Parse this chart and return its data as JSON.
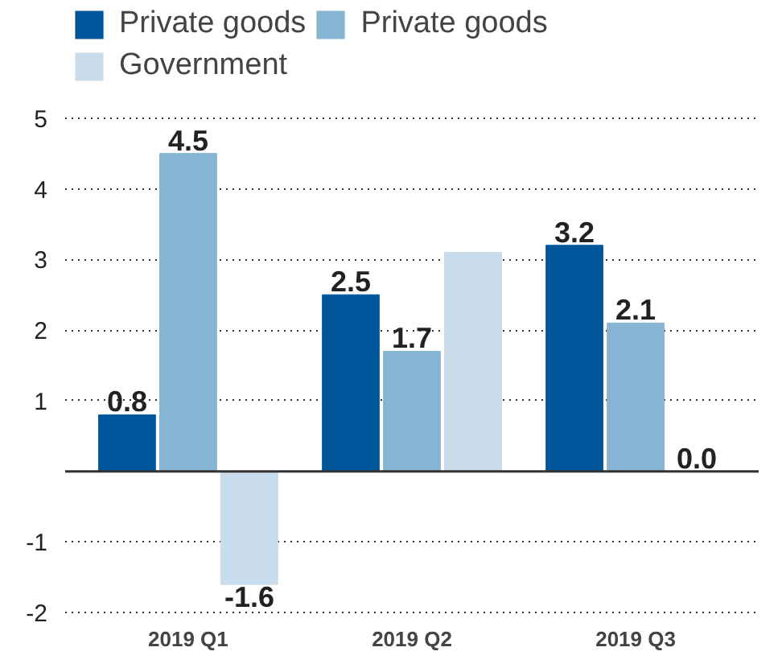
{
  "chart_data": {
    "type": "bar",
    "categories": [
      "2019 Q1",
      "2019 Q2",
      "2019 Q3"
    ],
    "series": [
      {
        "name": "Private goods",
        "color": "#00569a",
        "values": [
          0.8,
          2.5,
          3.2
        ],
        "value_labels": [
          "0.8",
          "2.5",
          "3.2"
        ]
      },
      {
        "name": "Private goods",
        "color": "#86b4d3",
        "values": [
          4.5,
          1.7,
          2.1
        ],
        "value_labels": [
          "4.5",
          "1.7",
          "2.1"
        ]
      },
      {
        "name": "Government",
        "color": "#c9dcec",
        "values": [
          -1.6,
          3.1,
          0.0
        ],
        "value_labels": [
          "-1.6",
          null,
          "0.0"
        ]
      }
    ],
    "ylim": [
      -2.02,
      5.02
    ],
    "yticks": [
      -2,
      -1,
      1,
      2,
      3,
      4,
      5
    ],
    "grid": "y",
    "legend": "top left"
  }
}
